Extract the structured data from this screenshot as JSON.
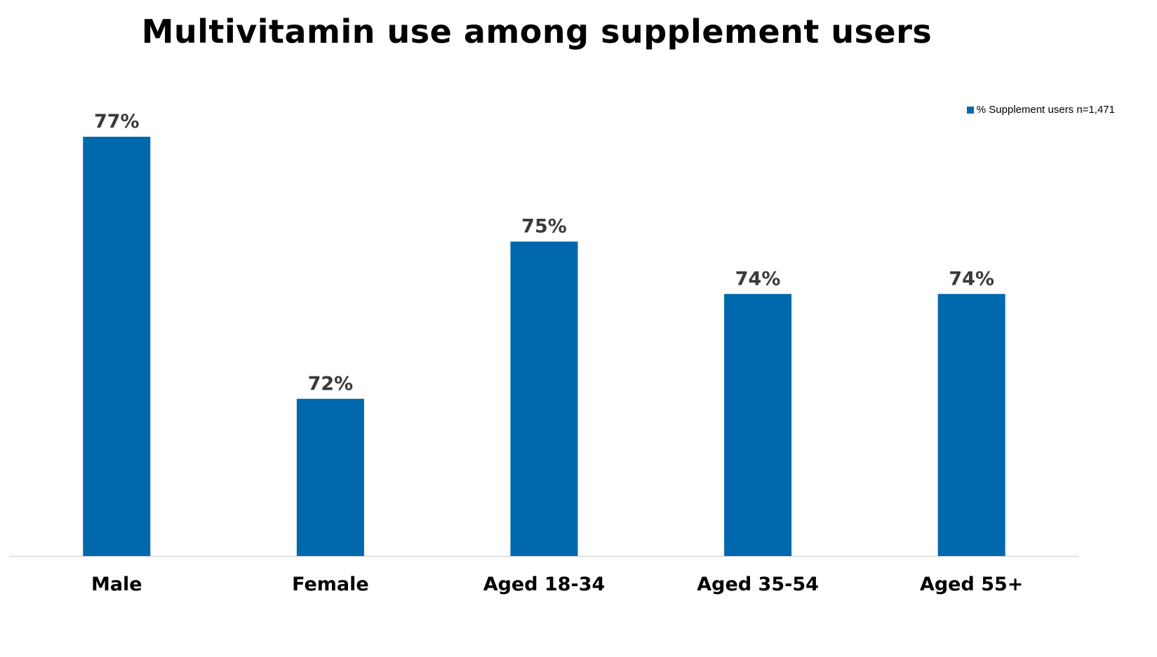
{
  "chart_data": {
    "type": "bar",
    "title": "Multivitamin use among supplement users",
    "categories": [
      "Male",
      "Female",
      "Aged 18-34",
      "Aged 35-54",
      "Aged 55+"
    ],
    "series": [
      {
        "name": "% Supplement users n=1,471",
        "values": [
          77,
          72,
          75,
          74,
          74
        ],
        "data_labels": [
          "77%",
          "72%",
          "75%",
          "74%",
          "74%"
        ],
        "color": "#0068ad"
      }
    ],
    "ylim": [
      69,
      78
    ],
    "grid": false,
    "legend_position": "top-right"
  }
}
